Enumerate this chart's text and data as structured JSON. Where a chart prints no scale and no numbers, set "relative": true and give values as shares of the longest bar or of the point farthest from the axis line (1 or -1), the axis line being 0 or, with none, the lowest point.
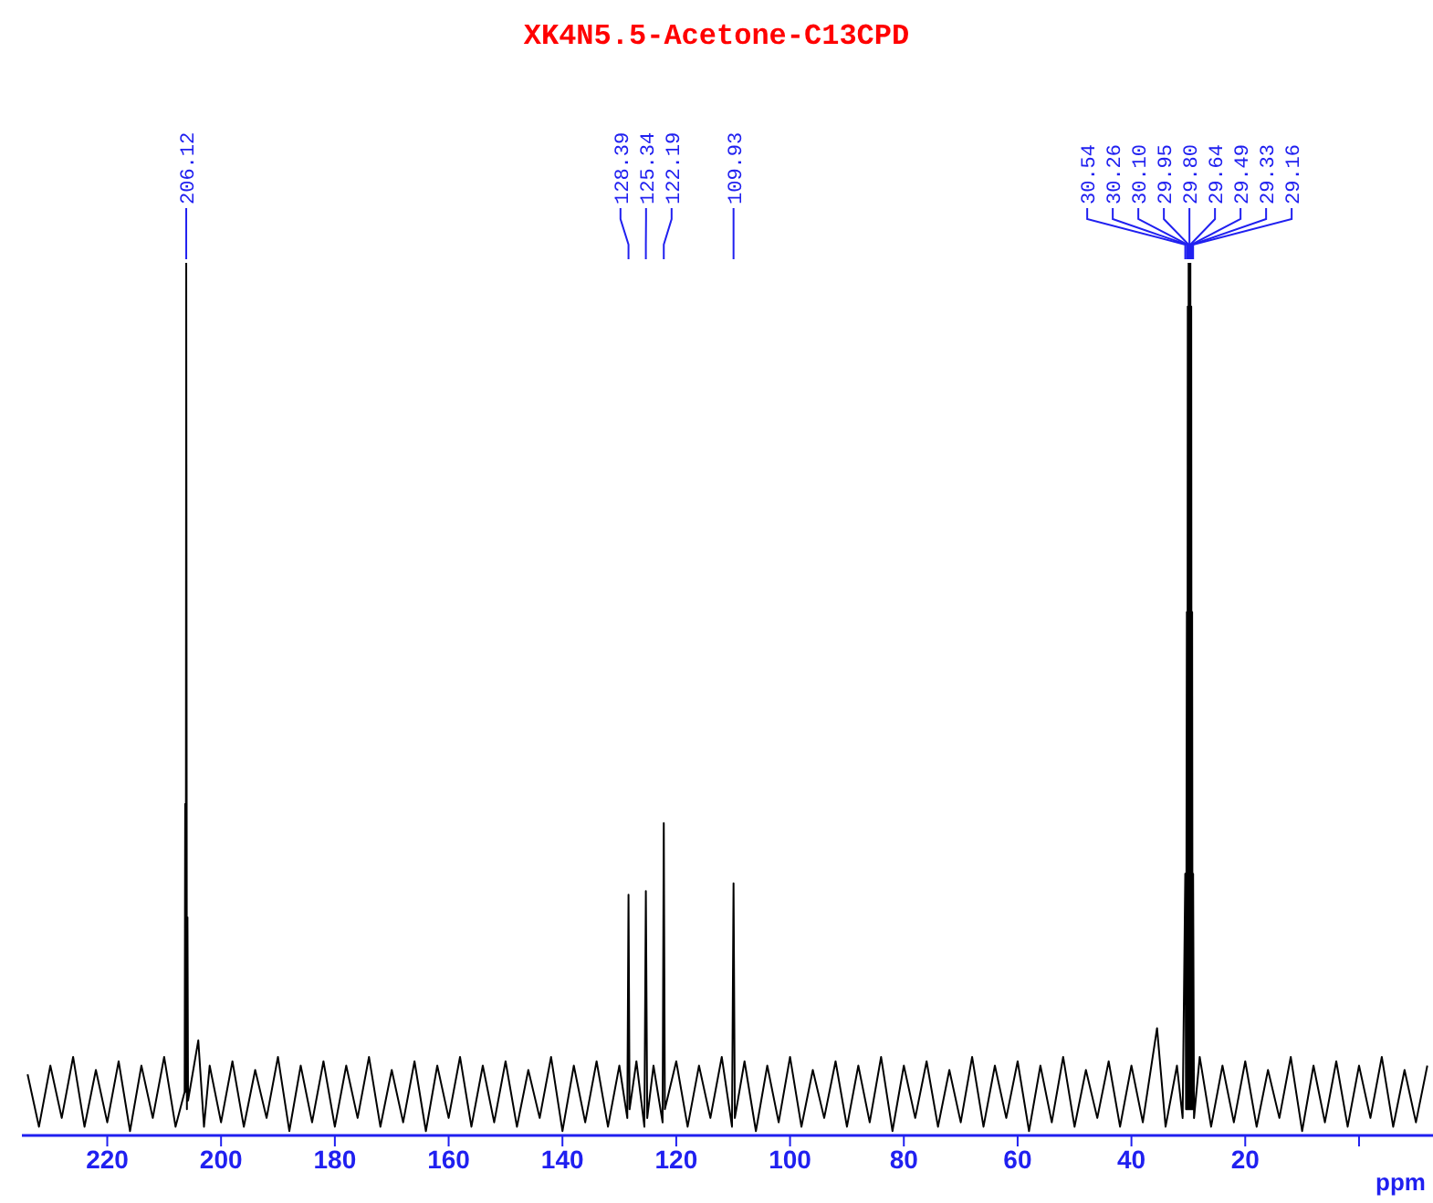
{
  "chart_data": {
    "type": "line",
    "title": "XK4N5.5-Acetone-C13CPD",
    "xlabel": "ppm",
    "relative": true,
    "marker": "none",
    "xlim": [
      235,
      -13
    ],
    "xticks": [
      220,
      200,
      180,
      160,
      140,
      120,
      100,
      80,
      60,
      40,
      20,
      {
        "value": 0,
        "label": null
      }
    ],
    "tick_labels": "x",
    "annotations": [
      {
        "text": "206.12",
        "x": 206.12
      },
      {
        "text": "128.39",
        "x": 128.39
      },
      {
        "text": "125.34",
        "x": 125.34
      },
      {
        "text": "122.19",
        "x": 122.19
      },
      {
        "text": "109.93",
        "x": 109.93
      },
      {
        "text": "30.54",
        "x": 30.54
      },
      {
        "text": "30.26",
        "x": 30.26
      },
      {
        "text": "30.10",
        "x": 30.1
      },
      {
        "text": "29.95",
        "x": 29.95
      },
      {
        "text": "29.80",
        "x": 29.8
      },
      {
        "text": "29.64",
        "x": 29.64
      },
      {
        "text": "29.49",
        "x": 29.49
      },
      {
        "text": "29.33",
        "x": 29.33
      },
      {
        "text": "29.16",
        "x": 29.16
      }
    ],
    "series": [
      {
        "color": "#000000",
        "x": [
          234,
          232,
          230,
          228,
          226,
          224,
          222,
          220,
          218,
          216,
          214,
          212,
          210,
          208,
          206.4,
          206.3,
          206.2,
          206.12,
          206.0,
          205.9,
          205.8,
          204,
          203,
          202,
          200,
          198,
          196,
          194,
          192,
          190,
          188,
          186,
          184,
          182,
          180,
          178,
          176,
          174,
          172,
          170,
          168,
          166,
          164,
          162,
          160,
          158,
          156,
          154,
          152,
          150,
          148,
          146,
          144,
          142,
          140,
          138,
          136,
          134,
          132,
          130,
          128.6,
          128.39,
          128.2,
          127,
          125.6,
          125.34,
          125.1,
          124,
          122.4,
          122.19,
          122.0,
          120,
          118,
          116,
          114,
          112,
          110.2,
          109.93,
          109.7,
          108,
          106,
          104,
          102,
          100,
          98,
          96,
          94,
          92,
          90,
          88,
          86,
          84,
          82,
          80,
          78,
          76,
          74,
          72,
          70,
          68,
          66,
          64,
          62,
          60,
          58,
          56,
          54,
          52,
          50,
          48,
          46,
          44,
          42,
          40,
          38,
          35.5,
          34,
          32,
          31,
          30.54,
          30.4,
          30.26,
          30.18,
          30.1,
          30.02,
          29.95,
          29.88,
          29.8,
          29.72,
          29.64,
          29.56,
          29.49,
          29.41,
          29.33,
          29.25,
          29.16,
          29.0,
          28,
          26,
          24,
          22,
          20,
          18,
          16,
          14,
          12,
          10,
          8,
          6,
          4,
          2,
          0,
          -2,
          -4,
          -6,
          -8,
          -10,
          -12
        ],
        "values": [
          0.07,
          0.01,
          0.08,
          0.02,
          0.09,
          0.01,
          0.075,
          0.015,
          0.085,
          0.005,
          0.08,
          0.02,
          0.09,
          0.01,
          0.05,
          0.38,
          0.05,
          1,
          0.03,
          0.25,
          0.04,
          0.109,
          0.01,
          0.08,
          0.015,
          0.085,
          0.01,
          0.075,
          0.02,
          0.09,
          0.005,
          0.08,
          0.015,
          0.085,
          0.01,
          0.08,
          0.02,
          0.09,
          0.01,
          0.075,
          0.015,
          0.085,
          0.005,
          0.08,
          0.02,
          0.09,
          0.01,
          0.08,
          0.015,
          0.085,
          0.01,
          0.075,
          0.02,
          0.09,
          0.005,
          0.08,
          0.015,
          0.085,
          0.01,
          0.08,
          0.02,
          0.276,
          0.03,
          0.085,
          0.01,
          0.28,
          0.02,
          0.08,
          0.015,
          0.358,
          0.03,
          0.085,
          0.01,
          0.08,
          0.02,
          0.09,
          0.01,
          0.289,
          0.02,
          0.085,
          0.005,
          0.08,
          0.015,
          0.09,
          0.01,
          0.075,
          0.02,
          0.085,
          0.01,
          0.08,
          0.015,
          0.09,
          0.005,
          0.08,
          0.02,
          0.085,
          0.01,
          0.075,
          0.015,
          0.09,
          0.01,
          0.08,
          0.02,
          0.085,
          0.005,
          0.08,
          0.015,
          0.09,
          0.01,
          0.075,
          0.02,
          0.085,
          0.01,
          0.08,
          0.015,
          0.123,
          0.01,
          0.08,
          0.02,
          0.3,
          0.03,
          0.6,
          0.03,
          0.95,
          0.03,
          1,
          0.03,
          1,
          0.03,
          1,
          0.03,
          0.95,
          0.03,
          0.6,
          0.03,
          0.3,
          0.02,
          0.09,
          0.01,
          0.08,
          0.015,
          0.085,
          0.01,
          0.075,
          0.02,
          0.09,
          0.005,
          0.08,
          0.015,
          0.085,
          0.01,
          0.08,
          0.02,
          0.09,
          0.01,
          0.075,
          0.015,
          0.08
        ]
      }
    ]
  }
}
